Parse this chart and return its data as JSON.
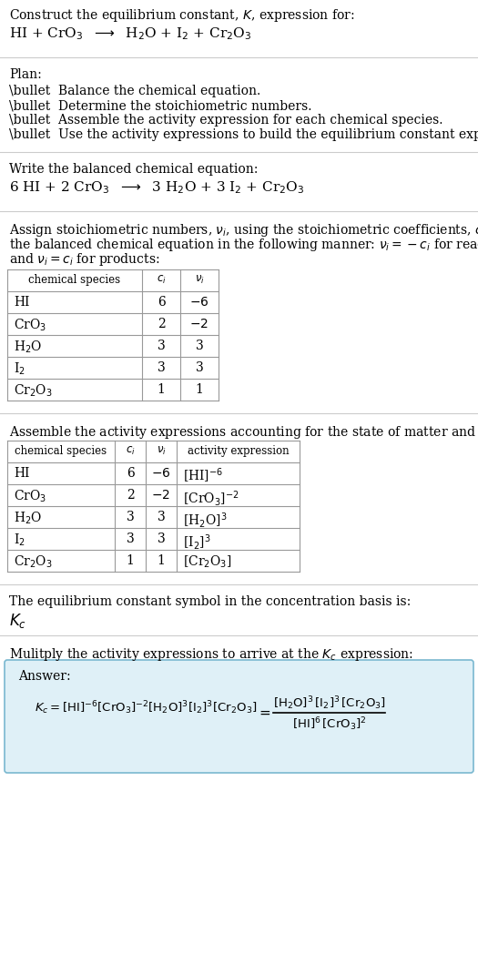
{
  "title_line1": "Construct the equilibrium constant, $K$, expression for:",
  "reaction_unbalanced": "HI + CrO$_3$  $\\longrightarrow$  H$_2$O + I$_2$ + Cr$_2$O$_3$",
  "plan_header": "Plan:",
  "plan_bullets": [
    "\\bullet  Balance the chemical equation.",
    "\\bullet  Determine the stoichiometric numbers.",
    "\\bullet  Assemble the activity expression for each chemical species.",
    "\\bullet  Use the activity expressions to build the equilibrium constant expression."
  ],
  "balanced_header": "Write the balanced chemical equation:",
  "reaction_balanced": "6 HI + 2 CrO$_3$  $\\longrightarrow$  3 H$_2$O + 3 I$_2$ + Cr$_2$O$_3$",
  "stoich_intro1": "Assign stoichiometric numbers, $\\nu_i$, using the stoichiometric coefficients, $c_i$, from",
  "stoich_intro2": "the balanced chemical equation in the following manner: $\\nu_i = -c_i$ for reactants",
  "stoich_intro3": "and $\\nu_i = c_i$ for products:",
  "table1_headers": [
    "chemical species",
    "$c_i$",
    "$\\nu_i$"
  ],
  "table1_rows": [
    [
      "HI",
      "6",
      "$-6$"
    ],
    [
      "CrO$_3$",
      "2",
      "$-2$"
    ],
    [
      "H$_2$O",
      "3",
      "3"
    ],
    [
      "I$_2$",
      "3",
      "3"
    ],
    [
      "Cr$_2$O$_3$",
      "1",
      "1"
    ]
  ],
  "activity_intro": "Assemble the activity expressions accounting for the state of matter and $\\nu_i$:",
  "table2_headers": [
    "chemical species",
    "$c_i$",
    "$\\nu_i$",
    "activity expression"
  ],
  "table2_rows": [
    [
      "HI",
      "6",
      "$-6$",
      "[HI]$^{-6}$"
    ],
    [
      "CrO$_3$",
      "2",
      "$-2$",
      "[CrO$_3$]$^{-2}$"
    ],
    [
      "H$_2$O",
      "3",
      "3",
      "[H$_2$O]$^3$"
    ],
    [
      "I$_2$",
      "3",
      "3",
      "[I$_2$]$^3$"
    ],
    [
      "Cr$_2$O$_3$",
      "1",
      "1",
      "[Cr$_2$O$_3$]"
    ]
  ],
  "kc_symbol_text": "The equilibrium constant symbol in the concentration basis is:",
  "kc_symbol": "$K_c$",
  "multiply_text": "Mulitply the activity expressions to arrive at the $K_c$ expression:",
  "answer_label": "Answer:",
  "answer_box_color": "#dff0f7",
  "answer_border_color": "#7ab8d0",
  "bg_color": "#ffffff",
  "text_color": "#000000",
  "table_border_color": "#999999",
  "line_color": "#cccccc",
  "font_size": 10.0
}
